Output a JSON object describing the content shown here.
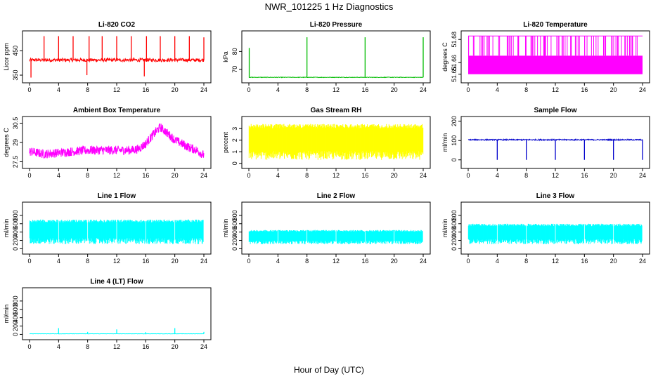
{
  "figure": {
    "title": "NWR_101225  1 Hz Diagnostics",
    "xlabel": "Hour of Day (UTC)"
  },
  "chart_data": [
    {
      "type": "line",
      "title": "Li-820 CO2",
      "xlabel": "",
      "ylabel": "Licor ppm",
      "color": "#ff0000",
      "xlim": [
        0,
        24
      ],
      "ylim": [
        330,
        520
      ],
      "xticks": [
        0,
        4,
        8,
        12,
        16,
        20,
        24
      ],
      "yticks": [
        350,
        450
      ],
      "baseline": 412,
      "noise": 7,
      "spikes": [
        {
          "x": 0.2,
          "y": 340
        },
        {
          "x": 2.0,
          "y": 510
        },
        {
          "x": 4.0,
          "y": 510
        },
        {
          "x": 6.0,
          "y": 510
        },
        {
          "x": 7.9,
          "y": 350
        },
        {
          "x": 8.2,
          "y": 510
        },
        {
          "x": 10.0,
          "y": 510
        },
        {
          "x": 12.0,
          "y": 510
        },
        {
          "x": 14.0,
          "y": 510
        },
        {
          "x": 15.8,
          "y": 345
        },
        {
          "x": 16.1,
          "y": 510
        },
        {
          "x": 18.0,
          "y": 510
        },
        {
          "x": 20.0,
          "y": 510
        },
        {
          "x": 22.0,
          "y": 510
        },
        {
          "x": 24.0,
          "y": 505
        }
      ]
    },
    {
      "type": "line",
      "title": "Li-820 Pressure",
      "xlabel": "",
      "ylabel": "kPa",
      "color": "#00bb00",
      "xlim": [
        0,
        24
      ],
      "ylim": [
        64,
        90
      ],
      "xticks": [
        0,
        4,
        8,
        12,
        16,
        20,
        24
      ],
      "yticks": [
        70,
        80
      ],
      "baseline": 65.5,
      "noise": 0.15,
      "spikes": [
        {
          "x": 0.05,
          "y": 82
        },
        {
          "x": 8.0,
          "y": 88
        },
        {
          "x": 16.0,
          "y": 88
        },
        {
          "x": 24.0,
          "y": 88
        }
      ]
    },
    {
      "type": "line",
      "title": "Li-820 Temperature",
      "xlabel": "",
      "ylabel": "degrees C",
      "color": "#ff00ff",
      "xlim": [
        0,
        24
      ],
      "ylim": [
        51.645,
        51.685
      ],
      "xticks": [
        0,
        4,
        8,
        12,
        16,
        20,
        24
      ],
      "yticks": [
        51.65,
        51.66,
        51.68
      ],
      "levels": [
        51.65,
        51.666,
        51.683
      ]
    },
    {
      "type": "line",
      "title": "Ambient Box Temperature",
      "xlabel": "",
      "ylabel": "degrees C",
      "color": "#ff00ff",
      "xlim": [
        0,
        24
      ],
      "ylim": [
        27.2,
        30.8
      ],
      "xticks": [
        0,
        4,
        8,
        12,
        16,
        20,
        24
      ],
      "yticks": [
        27.5,
        29.0,
        30.5
      ],
      "trend": {
        "x": [
          0,
          2,
          4,
          6,
          8,
          10,
          12,
          14,
          15,
          16,
          17,
          18,
          19,
          20,
          21,
          22,
          23,
          24
        ],
        "y": [
          28.3,
          28.1,
          28.2,
          28.3,
          28.4,
          28.4,
          28.4,
          28.4,
          28.5,
          28.9,
          29.6,
          30.2,
          29.7,
          29.2,
          28.9,
          28.6,
          28.4,
          28.0
        ]
      },
      "noise": 0.35
    },
    {
      "type": "line",
      "title": "Gas Stream RH",
      "xlabel": "",
      "ylabel": "percent",
      "color": "#ffff00",
      "xlim": [
        0,
        24
      ],
      "ylim": [
        -0.2,
        3.8
      ],
      "xticks": [
        0,
        4,
        8,
        12,
        16,
        20,
        24
      ],
      "yticks": [
        0,
        1,
        2,
        3
      ],
      "band": [
        0.3,
        3.4
      ]
    },
    {
      "type": "line",
      "title": "Sample Flow",
      "xlabel": "",
      "ylabel": "ml/min",
      "color": "#0000cc",
      "xlim": [
        0,
        24
      ],
      "ylim": [
        -30,
        210
      ],
      "xticks": [
        0,
        4,
        8,
        12,
        16,
        20,
        24
      ],
      "yticks": [
        0,
        100,
        200
      ],
      "baseline": 104,
      "noise": 3,
      "dips": [
        4,
        8,
        12,
        16,
        20,
        24
      ]
    },
    {
      "type": "line",
      "title": "Line 1 Flow",
      "xlabel": "",
      "ylabel": "ml/min",
      "color": "#00ffff",
      "xlim": [
        0,
        24
      ],
      "ylim": [
        -60,
        1050
      ],
      "xticks": [
        0,
        4,
        8,
        12,
        16,
        20,
        24
      ],
      "yticks": [
        0,
        200,
        400,
        600,
        800
      ],
      "band": [
        110,
        700
      ],
      "gaps": [
        4,
        8,
        12,
        16,
        20,
        24
      ]
    },
    {
      "type": "line",
      "title": "Line 2 Flow",
      "xlabel": "",
      "ylabel": "ml/min",
      "color": "#00ffff",
      "xlim": [
        0,
        24
      ],
      "ylim": [
        -60,
        1050
      ],
      "xticks": [
        0,
        4,
        8,
        12,
        16,
        20,
        24
      ],
      "yticks": [
        0,
        200,
        400,
        600,
        800
      ],
      "band": [
        110,
        450
      ],
      "gaps": [
        4,
        8,
        12,
        16,
        20,
        24
      ]
    },
    {
      "type": "line",
      "title": "Line 3 Flow",
      "xlabel": "",
      "ylabel": "ml/min",
      "color": "#00ffff",
      "xlim": [
        0,
        24
      ],
      "ylim": [
        -60,
        1050
      ],
      "xticks": [
        0,
        4,
        8,
        12,
        16,
        20,
        24
      ],
      "yticks": [
        0,
        200,
        400,
        600,
        800
      ],
      "band": [
        110,
        600
      ],
      "gaps": [
        4,
        8,
        12,
        16,
        20,
        24
      ]
    },
    {
      "type": "line",
      "title": "Line 4 (LT) Flow",
      "xlabel": "",
      "ylabel": "ml/min",
      "color": "#00ffff",
      "xlim": [
        0,
        24
      ],
      "ylim": [
        -60,
        1050
      ],
      "xticks": [
        0,
        4,
        8,
        12,
        16,
        20,
        24
      ],
      "yticks": [
        0,
        200,
        400,
        600,
        800
      ],
      "baseline": 15,
      "noise": 3,
      "spikes": [
        {
          "x": 4.0,
          "y": 150
        },
        {
          "x": 8.0,
          "y": 60
        },
        {
          "x": 12.0,
          "y": 120
        },
        {
          "x": 16.0,
          "y": 55
        },
        {
          "x": 20.0,
          "y": 150
        },
        {
          "x": 24.0,
          "y": 60
        }
      ]
    }
  ]
}
